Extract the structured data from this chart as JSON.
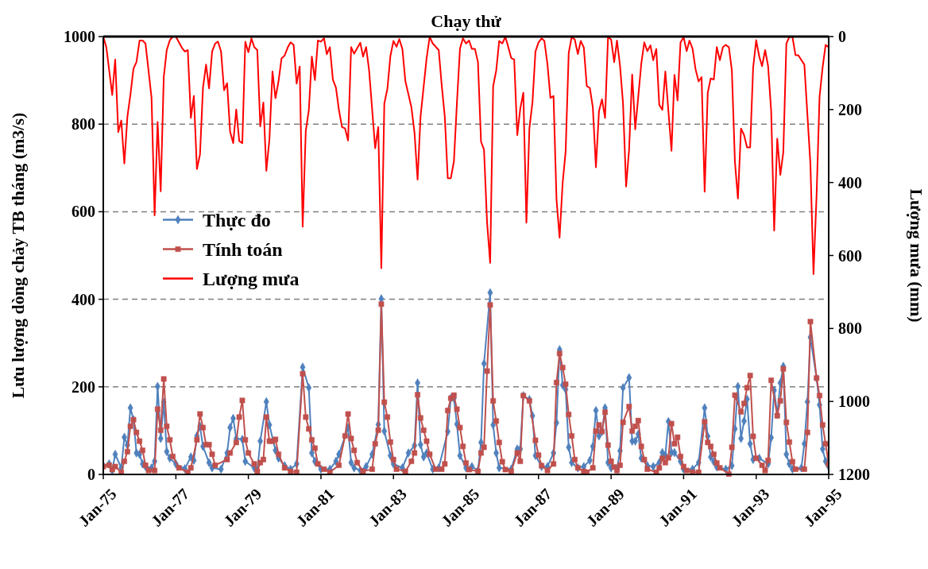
{
  "chart_data": {
    "type": "line",
    "title": "Chạy thử",
    "ylabel": "Lưu lượng dòng chảy TB tháng (m3/s)",
    "y2label": "Lượng mưa (mm)",
    "xlim": [
      "1975-01",
      "1995-01"
    ],
    "xticks": [
      {
        "value": "1975-01",
        "label": "Jan-75"
      },
      {
        "value": "1977-01",
        "label": "Jan-77"
      },
      {
        "value": "1979-01",
        "label": "Jan-79"
      },
      {
        "value": "1981-01",
        "label": "Jan-81"
      },
      {
        "value": "1983-01",
        "label": "Jan-83"
      },
      {
        "value": "1985-01",
        "label": "Jan-85"
      },
      {
        "value": "1987-01",
        "label": "Jan-87"
      },
      {
        "value": "1989-01",
        "label": "Jan-89"
      },
      {
        "value": "1991-01",
        "label": "Jan-91"
      },
      {
        "value": "1993-01",
        "label": "Jan-93"
      },
      {
        "value": "1995-01",
        "label": "Jan-95"
      }
    ],
    "ylim": [
      0,
      1000
    ],
    "yticks": [
      0,
      200,
      400,
      600,
      800,
      1000
    ],
    "y2lim": [
      1200,
      0
    ],
    "y2ticks": [
      0,
      200,
      400,
      600,
      800,
      1000,
      1200
    ],
    "grid": "y",
    "legend": "left",
    "series": [
      {
        "name": "Thực đo",
        "color": "#4f81bd",
        "marker": "diamond",
        "x": [
          "1975-01",
          "1975-03",
          "1975-04",
          "1975-05",
          "1975-07",
          "1975-08",
          "1975-09",
          "1975-10",
          "1975-11",
          "1975-12",
          "1976-01",
          "1976-02",
          "1976-03",
          "1976-05",
          "1976-06",
          "1976-07",
          "1976-08",
          "1976-09",
          "1976-10",
          "1976-11",
          "1977-01",
          "1977-04",
          "1977-06",
          "1977-07",
          "1977-08",
          "1977-09",
          "1977-10",
          "1977-12",
          "1978-01",
          "1978-04",
          "1978-06",
          "1978-07",
          "1978-08",
          "1978-09",
          "1978-11",
          "1978-12",
          "1979-03",
          "1979-04",
          "1979-05",
          "1979-07",
          "1979-08",
          "1979-10",
          "1979-11",
          "1980-01",
          "1980-03",
          "1980-05",
          "1980-07",
          "1980-09",
          "1980-10",
          "1980-11",
          "1981-01",
          "1981-04",
          "1981-06",
          "1981-07",
          "1981-10",
          "1981-11",
          "1981-12",
          "1982-02",
          "1982-04",
          "1982-06",
          "1982-08",
          "1982-09",
          "1982-10",
          "1982-12",
          "1983-01",
          "1983-04",
          "1983-06",
          "1983-08",
          "1983-09",
          "1983-10",
          "1983-11",
          "1983-12",
          "1984-02",
          "1984-04",
          "1984-07",
          "1984-08",
          "1984-09",
          "1984-10",
          "1984-11",
          "1985-01",
          "1985-03",
          "1985-05",
          "1985-06",
          "1985-07",
          "1985-09",
          "1985-10",
          "1985-11",
          "1985-12",
          "1986-04",
          "1986-06",
          "1986-07",
          "1986-08",
          "1986-10",
          "1986-11",
          "1986-12",
          "1987-02",
          "1987-04",
          "1987-06",
          "1987-07",
          "1987-08",
          "1987-09",
          "1987-10",
          "1987-11",
          "1987-12",
          "1988-02",
          "1988-04",
          "1988-06",
          "1988-07",
          "1988-08",
          "1988-09",
          "1988-10",
          "1988-11",
          "1988-12",
          "1989-01",
          "1989-03",
          "1989-04",
          "1989-05",
          "1989-07",
          "1989-08",
          "1989-09",
          "1989-10",
          "1989-11",
          "1990-01",
          "1990-03",
          "1990-05",
          "1990-06",
          "1990-07",
          "1990-08",
          "1990-09",
          "1990-10",
          "1990-12",
          "1991-01",
          "1991-04",
          "1991-06",
          "1991-08",
          "1991-09",
          "1991-10",
          "1991-11",
          "1991-12",
          "1992-03",
          "1992-05",
          "1992-06",
          "1992-07",
          "1992-08",
          "1992-09",
          "1992-10",
          "1992-11",
          "1992-12",
          "1993-02",
          "1993-05",
          "1993-06",
          "1993-07",
          "1993-08",
          "1993-09",
          "1993-10",
          "1993-11",
          "1993-12",
          "1994-01",
          "1994-04",
          "1994-05",
          "1994-06",
          "1994-07",
          "1994-09",
          "1994-10",
          "1994-11",
          "1994-12",
          "1995-01"
        ],
        "values": [
          20,
          24,
          9,
          46,
          15,
          85,
          67,
          152,
          125,
          49,
          46,
          24,
          18,
          15,
          30,
          201,
          82,
          165,
          52,
          37,
          24,
          13,
          40,
          32,
          88,
          110,
          64,
          27,
          15,
          12,
          49,
          107,
          128,
          82,
          80,
          30,
          15,
          9,
          76,
          166,
          113,
          55,
          37,
          20,
          12,
          24,
          245,
          198,
          49,
          30,
          12,
          12,
          30,
          46,
          107,
          27,
          15,
          9,
          18,
          46,
          114,
          401,
          99,
          43,
          24,
          15,
          49,
          66,
          209,
          68,
          40,
          49,
          12,
          15,
          98,
          174,
          174,
          115,
          43,
          15,
          18,
          9,
          73,
          253,
          415,
          113,
          49,
          15,
          12,
          58,
          58,
          180,
          171,
          134,
          43,
          18,
          18,
          49,
          118,
          285,
          204,
          194,
          62,
          27,
          15,
          18,
          32,
          64,
          146,
          88,
          98,
          152,
          27,
          15,
          12,
          54,
          198,
          221,
          76,
          76,
          92,
          37,
          20,
          18,
          27,
          50,
          44,
          121,
          50,
          50,
          30,
          12,
          12,
          27,
          152,
          87,
          40,
          29,
          17,
          12,
          20,
          104,
          201,
          82,
          122,
          172,
          70,
          34,
          37,
          24,
          84,
          192,
          137,
          209,
          247,
          46,
          24,
          12,
          15,
          70,
          166,
          313,
          220,
          159,
          58,
          30,
          18
        ]
      },
      {
        "name": "Tính toán",
        "color": "#c0504d",
        "marker": "square",
        "x": [
          "1975-01",
          "1975-03",
          "1975-04",
          "1975-05",
          "1975-07",
          "1975-08",
          "1975-09",
          "1975-10",
          "1975-11",
          "1975-12",
          "1976-01",
          "1976-02",
          "1976-03",
          "1976-04",
          "1976-06",
          "1976-07",
          "1976-08",
          "1976-09",
          "1976-10",
          "1976-11",
          "1976-12",
          "1977-02",
          "1977-05",
          "1977-06",
          "1977-08",
          "1977-09",
          "1977-10",
          "1977-11",
          "1977-12",
          "1978-01",
          "1978-02",
          "1978-06",
          "1978-07",
          "1978-09",
          "1978-10",
          "1978-11",
          "1978-12",
          "1979-01",
          "1979-03",
          "1979-04",
          "1979-05",
          "1979-06",
          "1979-07",
          "1979-08",
          "1979-09",
          "1979-10",
          "1979-11",
          "1980-01",
          "1980-03",
          "1980-05",
          "1980-07",
          "1980-08",
          "1980-09",
          "1980-10",
          "1980-11",
          "1980-12",
          "1981-02",
          "1981-04",
          "1981-07",
          "1981-09",
          "1981-10",
          "1981-11",
          "1981-12",
          "1982-01",
          "1982-03",
          "1982-06",
          "1982-07",
          "1982-08",
          "1982-09",
          "1982-10",
          "1982-11",
          "1982-12",
          "1983-01",
          "1983-02",
          "1983-05",
          "1983-07",
          "1983-08",
          "1983-09",
          "1983-10",
          "1983-11",
          "1983-12",
          "1984-01",
          "1984-03",
          "1984-05",
          "1984-06",
          "1984-07",
          "1984-08",
          "1984-09",
          "1984-10",
          "1984-11",
          "1984-12",
          "1985-01",
          "1985-02",
          "1985-05",
          "1985-06",
          "1985-07",
          "1985-08",
          "1985-09",
          "1985-10",
          "1985-11",
          "1985-12",
          "1986-01",
          "1986-02",
          "1986-04",
          "1986-06",
          "1986-07",
          "1986-08",
          "1986-10",
          "1986-12",
          "1987-01",
          "1987-02",
          "1987-04",
          "1987-06",
          "1987-07",
          "1987-08",
          "1987-09",
          "1987-10",
          "1987-11",
          "1987-12",
          "1988-01",
          "1988-02",
          "1988-04",
          "1988-05",
          "1988-07",
          "1988-08",
          "1988-09",
          "1988-10",
          "1988-11",
          "1988-12",
          "1989-01",
          "1989-02",
          "1989-03",
          "1989-04",
          "1989-05",
          "1989-07",
          "1989-08",
          "1989-09",
          "1989-10",
          "1989-11",
          "1989-12",
          "1990-01",
          "1990-04",
          "1990-05",
          "1990-06",
          "1990-07",
          "1990-08",
          "1990-09",
          "1990-10",
          "1990-11",
          "1990-12",
          "1991-01",
          "1991-02",
          "1991-04",
          "1991-06",
          "1991-08",
          "1991-09",
          "1991-10",
          "1991-11",
          "1991-12",
          "1992-01",
          "1992-04",
          "1992-05",
          "1992-06",
          "1992-08",
          "1992-09",
          "1992-10",
          "1992-11",
          "1992-12",
          "1993-01",
          "1993-03",
          "1993-04",
          "1993-05",
          "1993-06",
          "1993-08",
          "1993-09",
          "1993-10",
          "1993-11",
          "1993-12",
          "1994-01",
          "1994-02",
          "1994-05",
          "1994-06",
          "1994-07",
          "1994-09",
          "1994-10",
          "1994-11",
          "1994-12",
          "1995-01"
        ],
        "values": [
          18,
          21,
          11,
          18,
          5,
          30,
          52,
          110,
          125,
          96,
          76,
          55,
          21,
          9,
          9,
          149,
          101,
          218,
          110,
          79,
          41,
          15,
          5,
          15,
          79,
          138,
          107,
          68,
          68,
          46,
          21,
          34,
          49,
          73,
          131,
          169,
          79,
          49,
          24,
          7,
          27,
          34,
          131,
          76,
          76,
          80,
          46,
          15,
          7,
          5,
          230,
          131,
          104,
          79,
          60,
          24,
          12,
          5,
          21,
          88,
          138,
          82,
          55,
          27,
          7,
          12,
          70,
          101,
          389,
          165,
          131,
          74,
          34,
          12,
          7,
          30,
          49,
          182,
          129,
          101,
          76,
          46,
          12,
          12,
          24,
          146,
          174,
          181,
          149,
          107,
          64,
          26,
          11,
          7,
          49,
          62,
          236,
          387,
          168,
          122,
          73,
          29,
          11,
          7,
          49,
          30,
          180,
          168,
          78,
          44,
          20,
          9,
          24,
          210,
          276,
          244,
          206,
          137,
          88,
          34,
          15,
          7,
          5,
          15,
          99,
          113,
          98,
          142,
          67,
          30,
          17,
          9,
          21,
          119,
          155,
          99,
          110,
          123,
          64,
          34,
          12,
          5,
          15,
          37,
          27,
          38,
          116,
          70,
          85,
          41,
          18,
          9,
          5,
          5,
          120,
          73,
          64,
          46,
          26,
          15,
          1,
          62,
          181,
          143,
          162,
          198,
          226,
          87,
          37,
          21,
          9,
          32,
          215,
          134,
          168,
          241,
          119,
          74,
          29,
          12,
          12,
          96,
          349,
          220,
          180,
          113,
          70,
          23
        ]
      },
      {
        "name": "Lượng mưa",
        "color": "#ff0000",
        "marker": "none",
        "axis": "y2",
        "x": [
          "1975-01",
          "1975-02",
          "1975-04",
          "1975-05",
          "1975-06",
          "1975-07",
          "1975-08",
          "1975-09",
          "1975-10",
          "1975-11",
          "1975-12",
          "1976-01",
          "1976-02",
          "1976-03",
          "1976-05",
          "1976-06",
          "1976-07",
          "1976-08",
          "1976-09",
          "1976-10",
          "1976-11",
          "1976-12",
          "1977-01",
          "1977-03",
          "1977-04",
          "1977-05",
          "1977-06",
          "1977-07",
          "1977-08",
          "1977-09",
          "1977-10",
          "1977-11",
          "1977-12",
          "1978-01",
          "1978-02",
          "1978-03",
          "1978-04",
          "1978-05",
          "1978-06",
          "1978-07",
          "1978-08",
          "1978-09",
          "1978-10",
          "1978-11",
          "1978-12",
          "1979-01",
          "1979-02",
          "1979-03",
          "1979-04",
          "1979-05",
          "1979-06",
          "1979-07",
          "1979-08",
          "1979-09",
          "1979-10",
          "1979-11",
          "1979-12",
          "1980-01",
          "1980-02",
          "1980-03",
          "1980-04",
          "1980-05",
          "1980-06",
          "1980-07",
          "1980-08",
          "1980-09",
          "1980-10",
          "1980-11",
          "1980-12",
          "1981-01",
          "1981-02",
          "1981-03",
          "1981-04",
          "1981-05",
          "1981-06",
          "1981-07",
          "1981-08",
          "1981-09",
          "1981-10",
          "1981-11",
          "1981-12",
          "1982-02",
          "1982-03",
          "1982-04",
          "1982-05",
          "1982-07",
          "1982-08",
          "1982-09",
          "1982-10",
          "1982-11",
          "1982-12",
          "1983-01",
          "1983-02",
          "1983-03",
          "1983-04",
          "1983-05",
          "1983-07",
          "1983-08",
          "1983-09",
          "1983-10",
          "1983-12",
          "1984-01",
          "1984-02",
          "1984-04",
          "1984-05",
          "1984-06",
          "1984-07",
          "1984-08",
          "1984-09",
          "1984-10",
          "1984-11",
          "1984-12",
          "1985-01",
          "1985-02",
          "1985-03",
          "1985-04",
          "1985-05",
          "1985-06",
          "1985-07",
          "1985-08",
          "1985-09",
          "1985-10",
          "1985-11",
          "1985-12",
          "1986-01",
          "1986-02",
          "1986-03",
          "1986-04",
          "1986-05",
          "1986-06",
          "1986-07",
          "1986-08",
          "1986-09",
          "1986-10",
          "1986-11",
          "1986-12",
          "1987-01",
          "1987-02",
          "1987-03",
          "1987-04",
          "1987-05",
          "1987-06",
          "1987-07",
          "1987-08",
          "1987-09",
          "1987-10",
          "1987-11",
          "1987-12",
          "1988-01",
          "1988-02",
          "1988-03",
          "1988-04",
          "1988-05",
          "1988-06",
          "1988-07",
          "1988-08",
          "1988-09",
          "1988-10",
          "1988-11",
          "1988-12",
          "1989-01",
          "1989-02",
          "1989-03",
          "1989-04",
          "1989-05",
          "1989-06",
          "1989-07",
          "1989-08",
          "1989-09",
          "1989-11",
          "1989-12",
          "1990-01",
          "1990-02",
          "1990-03",
          "1990-04",
          "1990-05",
          "1990-06",
          "1990-07",
          "1990-09",
          "1990-10",
          "1990-11",
          "1990-12",
          "1991-01",
          "1991-02",
          "1991-03",
          "1991-04",
          "1991-05",
          "1991-06",
          "1991-07",
          "1991-08",
          "1991-09",
          "1991-10",
          "1991-11",
          "1991-12",
          "1992-01",
          "1992-02",
          "1992-03",
          "1992-04",
          "1992-05",
          "1992-06",
          "1992-07",
          "1992-08",
          "1992-09",
          "1992-10",
          "1992-11",
          "1992-12",
          "1993-01",
          "1993-02",
          "1993-03",
          "1993-04",
          "1993-05",
          "1993-06",
          "1993-07",
          "1993-08",
          "1993-09",
          "1993-10",
          "1993-11",
          "1993-12",
          "1994-01",
          "1994-02",
          "1994-03",
          "1994-05",
          "1994-07",
          "1994-08",
          "1994-09",
          "1994-10",
          "1994-11",
          "1994-12",
          "1995-01"
        ],
        "values": [
          0,
          30,
          160,
          63,
          262,
          230,
          348,
          219,
          160,
          88,
          70,
          11,
          11,
          19,
          168,
          490,
          234,
          424,
          111,
          37,
          10,
          0,
          0,
          30,
          41,
          37,
          223,
          163,
          363,
          323,
          140,
          77,
          142,
          41,
          19,
          14,
          41,
          147,
          128,
          260,
          292,
          200,
          286,
          292,
          14,
          43,
          5,
          29,
          37,
          246,
          181,
          368,
          282,
          96,
          169,
          122,
          60,
          52,
          30,
          16,
          23,
          129,
          82,
          521,
          259,
          201,
          55,
          119,
          11,
          14,
          5,
          48,
          29,
          118,
          140,
          201,
          248,
          252,
          285,
          29,
          47,
          17,
          55,
          29,
          93,
          306,
          248,
          635,
          184,
          143,
          54,
          12,
          28,
          7,
          34,
          122,
          194,
          263,
          392,
          219,
          59,
          1,
          19,
          37,
          133,
          219,
          388,
          388,
          342,
          183,
          33,
          5,
          19,
          11,
          34,
          34,
          70,
          288,
          310,
          510,
          620,
          136,
          93,
          12,
          19,
          1,
          27,
          59,
          63,
          270,
          198,
          154,
          510,
          252,
          180,
          41,
          16,
          5,
          12,
          76,
          168,
          163,
          446,
          551,
          401,
          315,
          45,
          1,
          8,
          48,
          12,
          30,
          136,
          141,
          194,
          358,
          204,
          172,
          223,
          1,
          8,
          70,
          11,
          81,
          183,
          411,
          310,
          104,
          254,
          74,
          16,
          40,
          24,
          65,
          34,
          187,
          201,
          96,
          313,
          105,
          175,
          16,
          2,
          40,
          11,
          33,
          89,
          123,
          111,
          425,
          154,
          115,
          118,
          29,
          65,
          29,
          23,
          29,
          93,
          344,
          444,
          252,
          270,
          304,
          304,
          86,
          10,
          55,
          81,
          37,
          81,
          205,
          532,
          280,
          379,
          317,
          19,
          1,
          1,
          51,
          51,
          77,
          350,
          651,
          436,
          165,
          84,
          23,
          29
        ]
      }
    ]
  }
}
